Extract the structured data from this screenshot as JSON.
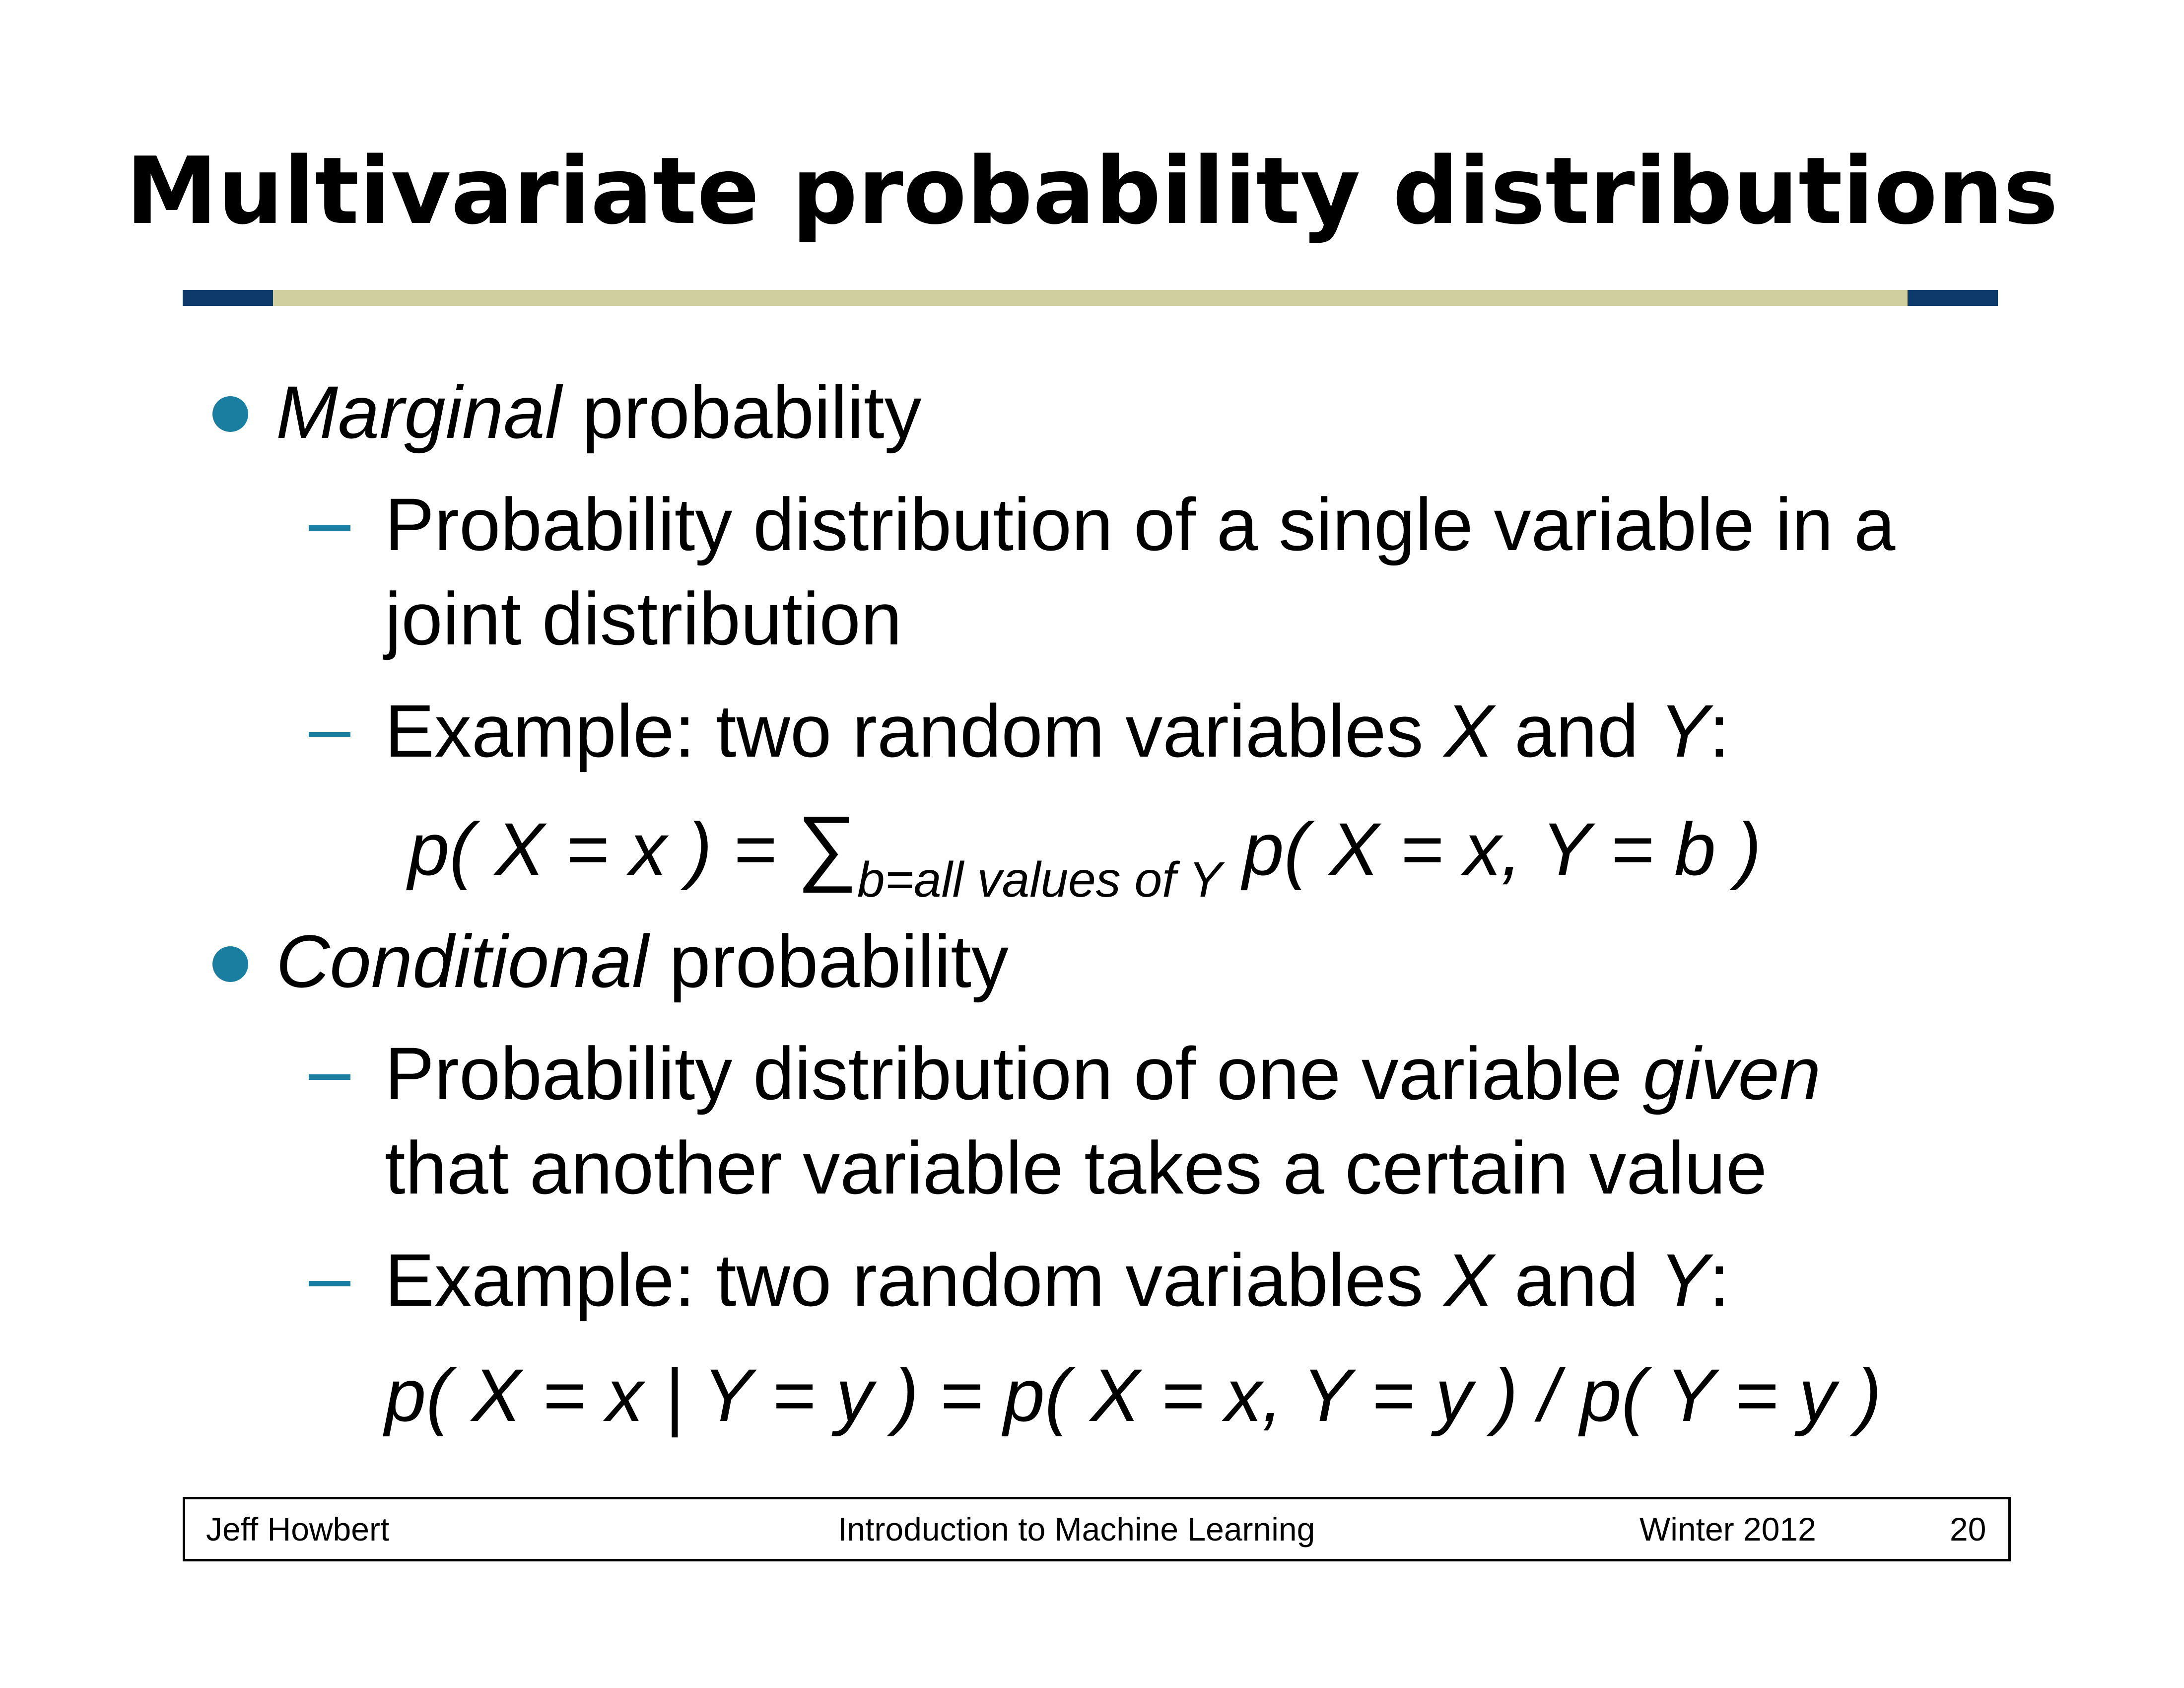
{
  "slide": {
    "title": "Multivariate probability distributions"
  },
  "marginal": {
    "term": "Marginal",
    "rest": " probability",
    "desc_line1": "Probability distribution of a single variable in a",
    "desc_line2": "joint distribution",
    "example_prefix": "Example: two random variables ",
    "example_x": "X",
    "example_and": " and ",
    "example_y": "Y",
    "example_colon": ":",
    "formula_lhs": "p( X = x ) = ",
    "formula_sum": "∑",
    "formula_sub": "b=all values of Y",
    "formula_rhs": " p( X = x, Y = b )"
  },
  "conditional": {
    "term": "Conditional",
    "rest": " probability",
    "desc_line1_prefix": "Probability distribution of one variable ",
    "desc_line1_given": "given",
    "desc_line2": "that another variable takes a certain value",
    "example_prefix": "Example: two random variables ",
    "example_x": "X",
    "example_and": " and ",
    "example_y": "Y",
    "example_colon": ":",
    "formula": "p( X = x | Y = y ) = p( X = x, Y = y ) / p( Y = y )"
  },
  "footer": {
    "author": "Jeff Howbert",
    "course": "Introduction to Machine Learning",
    "term": "Winter 2012",
    "page": "20"
  },
  "colors": {
    "accent_blue": "#1a7ea0",
    "rule_dark": "#0d3a6b",
    "rule_light": "#cfcf9f"
  }
}
